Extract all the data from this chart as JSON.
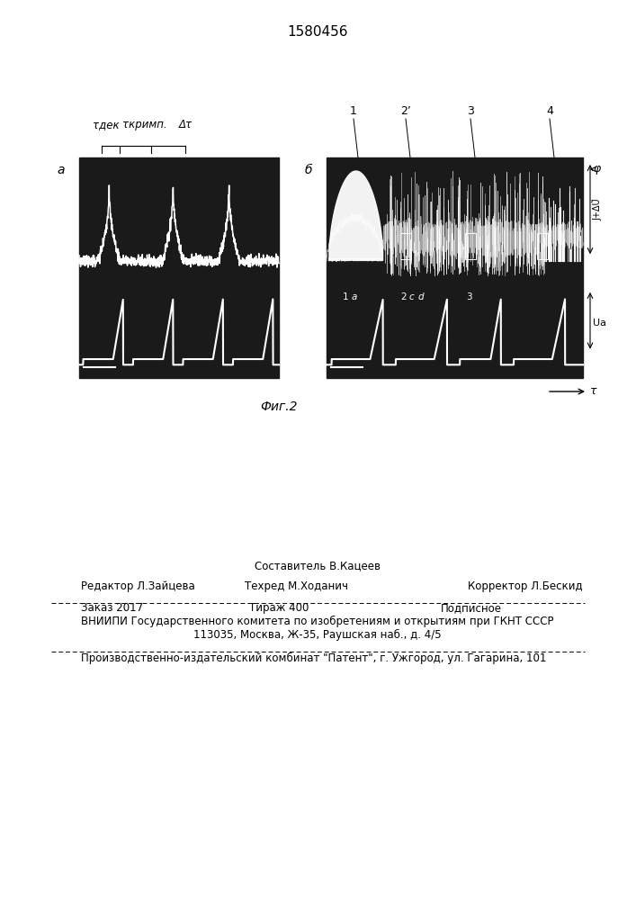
{
  "title_patent": "1580456",
  "fig_label": "Фиг.2",
  "label_a": "a",
  "label_b": "б",
  "label_tau_dek": "τдек",
  "label_tau_krimp": "τкримп.",
  "label_dt": "Δτ",
  "label_phi": "φ",
  "label_dU": "J+ΔŨ",
  "label_Ua": "Uа",
  "label_tau_arrow": "τ",
  "sestavitel": "Составитель В.Кацеев",
  "redaktor": "Редактор Л.Зайцева",
  "tehred": "Техред М.Ходанич",
  "korrektor": "Корректор Л.Бескид",
  "zakaz": "Заказ 2017",
  "tirazh": "Тираж 400",
  "podpisnoe": "Подписное",
  "vniiipi_line1": "ВНИИПИ Государственного комитета по изобретениям и открытиям при ГКНТ СССР",
  "vniiipi_line2": "113035, Москва, Ж-35, Раушская наб., д. 4/5",
  "proizv": "Производственно-издательский комбинат \"Патент\", г. Ужгород, ул. Гагарина, 101",
  "bg_color": "#ffffff",
  "panel_bg": "#1a1a1a"
}
